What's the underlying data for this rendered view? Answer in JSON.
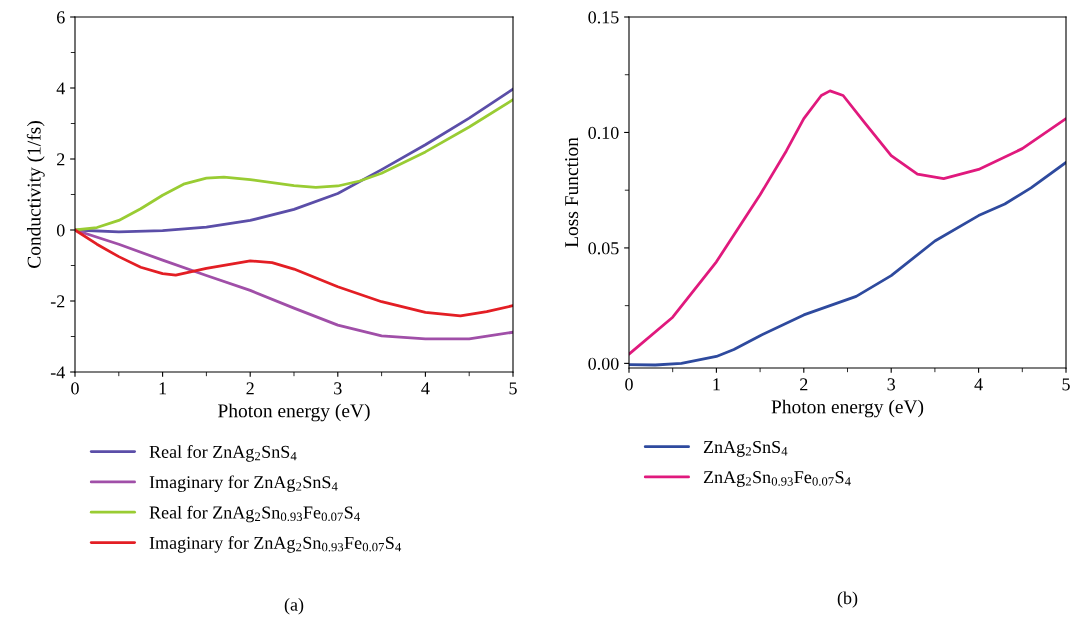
{
  "chart_data": [
    {
      "type": "line",
      "xlabel": "Photon energy (eV)",
      "ylabel": "Conductivity (1/fs)",
      "xlim": [
        0,
        5
      ],
      "xticks": [
        0,
        1,
        2,
        3,
        4,
        5
      ],
      "ylim": [
        -4,
        6
      ],
      "yticks": [
        -4,
        -2,
        0,
        2,
        4,
        6
      ],
      "grid": false,
      "legend": "bottom",
      "annotations": [
        "(a)"
      ],
      "series": [
        {
          "name": "Real for ZnAg$_{2}$SnS$_{4}$",
          "color": "#5b4ea8",
          "x": [
            0,
            0.5,
            1,
            1.5,
            2,
            2.5,
            3,
            3.5,
            4,
            4.5,
            5
          ],
          "values": [
            0,
            -0.05,
            -0.02,
            0.08,
            0.27,
            0.58,
            1.03,
            1.7,
            2.4,
            3.15,
            3.97
          ]
        },
        {
          "name": "Imaginary for ZnAg$_{2}$SnS$_{4}$",
          "color": "#a04fa8",
          "x": [
            0,
            0.5,
            1,
            1.5,
            2,
            2.5,
            3,
            3.5,
            4,
            4.5,
            5
          ],
          "values": [
            0,
            -0.4,
            -0.85,
            -1.28,
            -1.7,
            -2.2,
            -2.68,
            -2.98,
            -3.07,
            -3.07,
            -2.88
          ]
        },
        {
          "name": "Real for ZnAg$_{2}$Sn$_{0.93}$Fe$_{0.07}$S$_{4}$",
          "color": "#99cc33",
          "x": [
            0,
            0.25,
            0.5,
            0.75,
            1,
            1.25,
            1.5,
            1.7,
            2,
            2.5,
            2.75,
            3,
            3.25,
            3.5,
            4,
            4.5,
            5
          ],
          "values": [
            0,
            0.07,
            0.27,
            0.6,
            0.98,
            1.3,
            1.46,
            1.49,
            1.42,
            1.25,
            1.2,
            1.24,
            1.38,
            1.6,
            2.2,
            2.9,
            3.67
          ]
        },
        {
          "name": "Imaginary for ZnAg$_{2}$Sn$_{0.93}$Fe$_{0.07}$S$_{4}$",
          "color": "#e31e24",
          "x": [
            0,
            0.25,
            0.5,
            0.75,
            1,
            1.15,
            1.5,
            2,
            2.25,
            2.5,
            3,
            3.5,
            4,
            4.4,
            4.7,
            5
          ],
          "values": [
            0,
            -0.4,
            -0.75,
            -1.05,
            -1.23,
            -1.27,
            -1.08,
            -0.87,
            -0.92,
            -1.1,
            -1.6,
            -2.02,
            -2.32,
            -2.42,
            -2.3,
            -2.13
          ]
        }
      ]
    },
    {
      "type": "line",
      "xlabel": "Photon energy (eV)",
      "ylabel": "Loss Function",
      "xlim": [
        0,
        5
      ],
      "xticks": [
        0,
        1,
        2,
        3,
        4,
        5
      ],
      "ylim": [
        -0.002,
        0.15
      ],
      "yticks": [
        {
          "value": 0,
          "label": "0.00"
        },
        {
          "value": 0.05,
          "label": "0.05"
        },
        {
          "value": 0.1,
          "label": "0.10"
        },
        {
          "value": 0.15,
          "label": "0.15"
        }
      ],
      "grid": false,
      "legend": "bottom",
      "annotations": [
        "(b)"
      ],
      "series": [
        {
          "name": "ZnAg$_{2}$SnS$_{4}$",
          "color": "#2e4a9e",
          "x": [
            0,
            0.3,
            0.6,
            1,
            1.2,
            1.5,
            2,
            2.3,
            2.6,
            3,
            3.5,
            4,
            4.3,
            4.6,
            5
          ],
          "values": [
            -0.0005,
            -0.0007,
            0.0,
            0.003,
            0.006,
            0.012,
            0.021,
            0.025,
            0.029,
            0.038,
            0.053,
            0.064,
            0.069,
            0.076,
            0.087
          ]
        },
        {
          "name": "ZnAg$_{2}$Sn$_{0.93}$Fe$_{0.07}$S$_{4}$",
          "color": "#e0197d",
          "x": [
            0,
            0.5,
            1,
            1.5,
            1.8,
            2,
            2.2,
            2.3,
            2.45,
            2.7,
            3,
            3.3,
            3.6,
            4,
            4.5,
            5
          ],
          "values": [
            0.004,
            0.02,
            0.044,
            0.073,
            0.092,
            0.106,
            0.116,
            0.118,
            0.116,
            0.104,
            0.09,
            0.082,
            0.08,
            0.084,
            0.093,
            0.106
          ]
        }
      ]
    }
  ]
}
